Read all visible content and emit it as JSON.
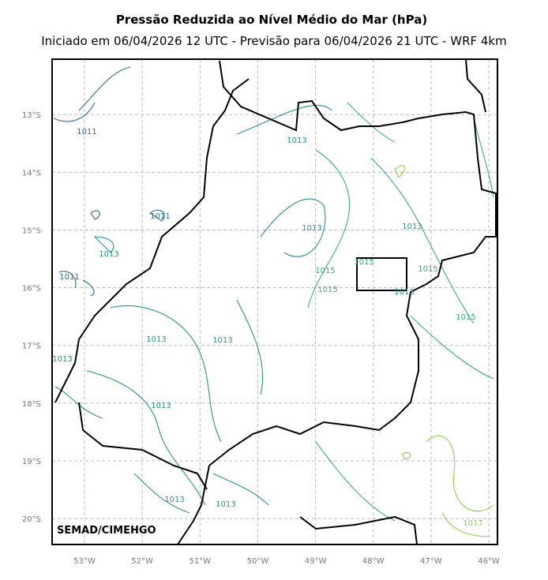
{
  "map": {
    "title": "Pressão Reduzida ao Nível Médio do Mar (hPa)",
    "subtitle": "Iniciado em 06/04/2026 12 UTC - Previsão para 06/04/2026 21 UTC - WRF 4km",
    "credit": "SEMAD/CIMEHGO",
    "xlim": [
      -53.56,
      -45.85
    ],
    "ylim": [
      -20.45,
      -12.04
    ],
    "xticks": [
      {
        "value": -53,
        "label": "53°W"
      },
      {
        "value": -52,
        "label": "52°W"
      },
      {
        "value": -51,
        "label": "51°W"
      },
      {
        "value": -50,
        "label": "50°W"
      },
      {
        "value": -49,
        "label": "49°W"
      },
      {
        "value": -48,
        "label": "48°W"
      },
      {
        "value": -47,
        "label": "47°W"
      },
      {
        "value": -46,
        "label": "46°W"
      }
    ],
    "yticks": [
      {
        "value": -13,
        "label": "13°S"
      },
      {
        "value": -14,
        "label": "14°S"
      },
      {
        "value": -15,
        "label": "15°S"
      },
      {
        "value": -16,
        "label": "16°S"
      },
      {
        "value": -17,
        "label": "17°S"
      },
      {
        "value": -18,
        "label": "18°S"
      },
      {
        "value": -19,
        "label": "19°S"
      },
      {
        "value": -20,
        "label": "20°S"
      }
    ],
    "contour_labels": [
      "1011",
      "1013",
      "1011",
      "1013",
      "1013",
      "1013",
      "1015",
      "1015",
      "1015",
      "1011",
      "1015",
      "1013",
      "1015",
      "1013",
      "1013",
      "1013",
      "1013",
      "1013",
      "1013",
      "1017"
    ]
  }
}
